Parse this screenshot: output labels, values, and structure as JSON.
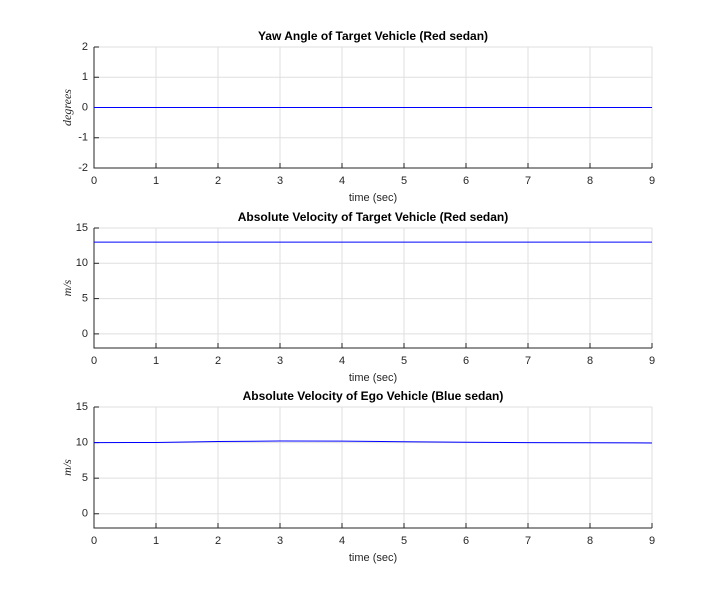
{
  "chart_data": [
    {
      "type": "line",
      "title": "Yaw Angle of Target Vehicle (Red sedan)",
      "x_label": "time (sec)",
      "y_label": "degrees",
      "x": [
        0,
        1,
        2,
        3,
        4,
        5,
        6,
        7,
        8,
        9
      ],
      "series": [
        {
          "color": "#0000ff",
          "values": [
            0,
            0,
            0,
            0,
            0,
            0,
            0,
            0,
            0,
            0
          ]
        }
      ],
      "xlim": [
        0,
        9
      ],
      "xticks": [
        0,
        1,
        2,
        3,
        4,
        5,
        6,
        7,
        8,
        9
      ],
      "ylim": [
        -2,
        2
      ],
      "yticks": [
        -2,
        -1,
        0,
        1,
        2
      ],
      "grid": true
    },
    {
      "type": "line",
      "title": "Absolute Velocity of Target Vehicle (Red sedan)",
      "x_label": "time (sec)",
      "y_label": "m/s",
      "x": [
        0,
        1,
        2,
        3,
        4,
        5,
        6,
        7,
        8,
        9
      ],
      "series": [
        {
          "color": "#0000ff",
          "values": [
            13,
            13,
            13,
            13,
            13,
            13,
            13,
            13,
            13,
            13
          ]
        }
      ],
      "xlim": [
        0,
        9
      ],
      "xticks": [
        0,
        1,
        2,
        3,
        4,
        5,
        6,
        7,
        8,
        9
      ],
      "ylim": [
        -2,
        15
      ],
      "yticks": [
        0,
        5,
        10,
        15
      ],
      "grid": true
    },
    {
      "type": "line",
      "title": "Absolute Velocity of Ego Vehicle (Blue sedan)",
      "x_label": "time (sec)",
      "y_label": "m/s",
      "x": [
        0,
        1,
        2,
        3,
        4,
        5,
        6,
        7,
        8,
        9
      ],
      "series": [
        {
          "color": "#0000ff",
          "values": [
            10,
            10.02,
            10.15,
            10.22,
            10.2,
            10.12,
            10.05,
            10.0,
            9.97,
            9.95
          ]
        }
      ],
      "xlim": [
        0,
        9
      ],
      "xticks": [
        0,
        1,
        2,
        3,
        4,
        5,
        6,
        7,
        8,
        9
      ],
      "ylim": [
        -2,
        15
      ],
      "yticks": [
        0,
        5,
        10,
        15
      ],
      "grid": true
    }
  ]
}
